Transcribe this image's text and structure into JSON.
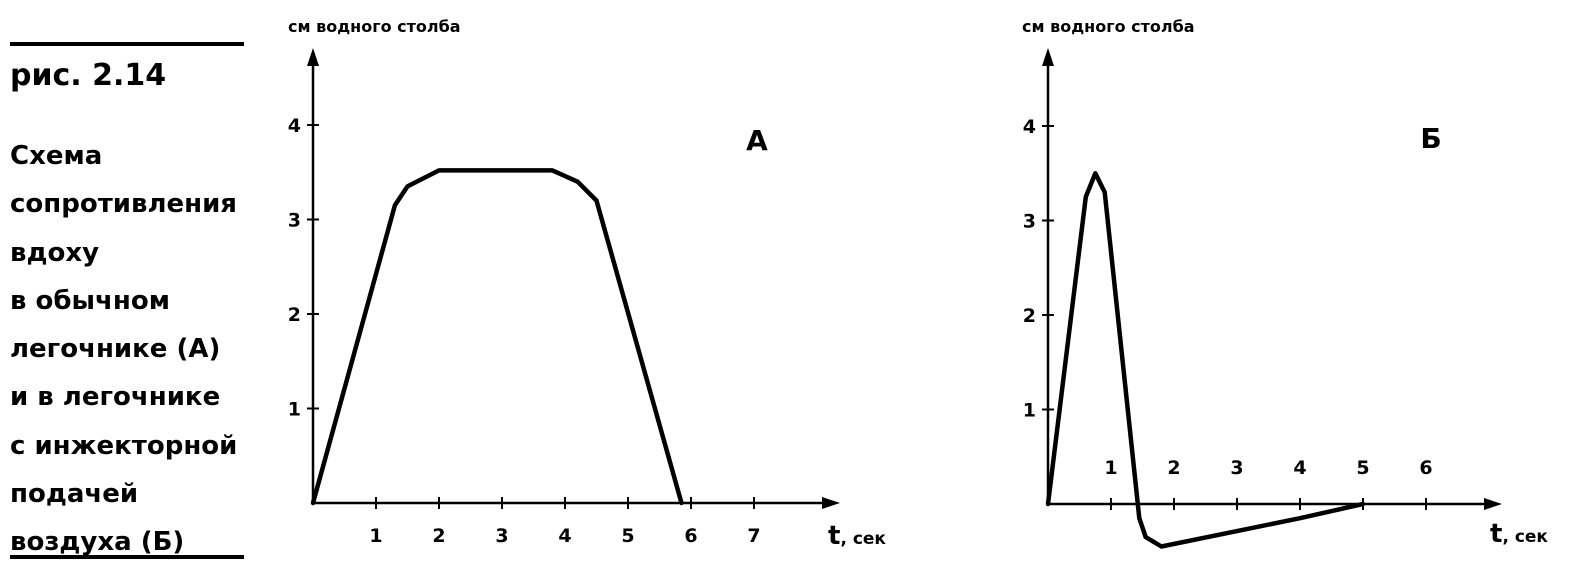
{
  "figure": {
    "number": "рис. 2.14",
    "caption_lines": [
      "Схема",
      "сопротивления",
      "вдоху",
      "в обычном",
      "легочнике (А)",
      "и в легочнике",
      "с инжекторной",
      "подачей",
      "воздуха (Б)"
    ]
  },
  "chart_data": [
    {
      "type": "line",
      "panel_label": "А",
      "ylabel": "см водного столба",
      "xlabel_symbol": "t",
      "xlabel_unit": ", сек",
      "xlim": [
        0,
        8
      ],
      "ylim": [
        0,
        5
      ],
      "x_ticks": [
        1,
        2,
        3,
        4,
        5,
        6,
        7
      ],
      "x_tick_labels": [
        "1",
        "2",
        "3",
        "4",
        "5",
        "6",
        "7"
      ],
      "y_ticks": [
        1,
        2,
        3,
        4
      ],
      "y_tick_labels": [
        "1",
        "2",
        "3",
        "4"
      ],
      "series": [
        {
          "x": [
            0,
            1.3,
            1.5,
            2.0,
            3.8,
            4.2,
            4.5,
            5.85
          ],
          "y": [
            0,
            3.15,
            3.35,
            3.52,
            3.52,
            3.4,
            3.2,
            0
          ]
        }
      ]
    },
    {
      "type": "line",
      "panel_label": "Б",
      "ylabel": "см водного столба",
      "xlabel_symbol": "t",
      "xlabel_unit": ", сек",
      "xlim": [
        0,
        7.3
      ],
      "ylim": [
        -0.5,
        5
      ],
      "x_ticks": [
        1,
        2,
        3,
        4,
        5,
        6
      ],
      "x_tick_labels": [
        "1",
        "2",
        "3",
        "4",
        "5",
        "6"
      ],
      "y_ticks": [
        1,
        2,
        3,
        4
      ],
      "y_tick_labels": [
        "1",
        "2",
        "3",
        "4"
      ],
      "series": [
        {
          "x": [
            0,
            0.6,
            0.75,
            0.9,
            1.45,
            1.55,
            1.8,
            4.0,
            5.0
          ],
          "y": [
            0,
            3.25,
            3.5,
            3.3,
            -0.15,
            -0.35,
            -0.45,
            -0.15,
            0
          ]
        }
      ]
    }
  ]
}
